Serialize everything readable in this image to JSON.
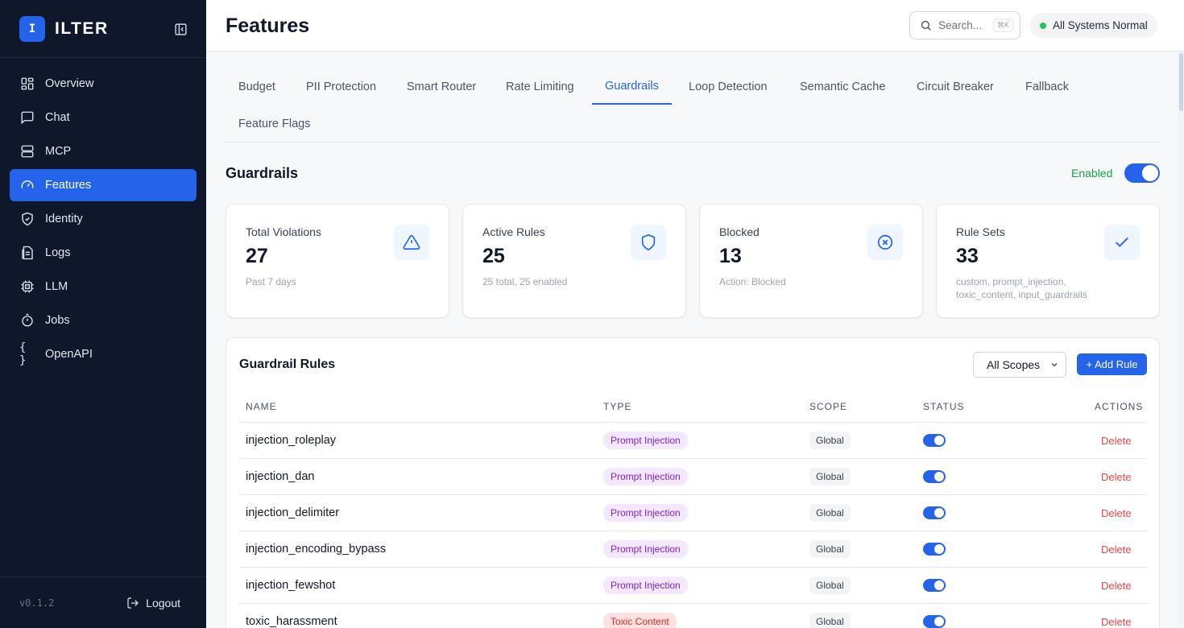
{
  "sidebar": {
    "logo_letter": "I",
    "brand": "ILTER",
    "items": [
      {
        "label": "Overview",
        "icon": "grid-icon"
      },
      {
        "label": "Chat",
        "icon": "chat-icon"
      },
      {
        "label": "MCP",
        "icon": "server-icon"
      },
      {
        "label": "Features",
        "icon": "gauge-icon",
        "active": true
      },
      {
        "label": "Identity",
        "icon": "shield-icon"
      },
      {
        "label": "Logs",
        "icon": "document-icon"
      },
      {
        "label": "LLM",
        "icon": "chip-icon"
      },
      {
        "label": "Jobs",
        "icon": "timer-icon"
      },
      {
        "label": "OpenAPI",
        "icon": "braces-icon"
      }
    ],
    "version": "v0.1.2",
    "logout": "Logout"
  },
  "header": {
    "title": "Features",
    "search_placeholder": "Search...",
    "search_shortcut": "⌘K",
    "status": "All Systems Normal"
  },
  "tabs": [
    "Budget",
    "PII Protection",
    "Smart Router",
    "Rate Limiting",
    "Guardrails",
    "Loop Detection",
    "Semantic Cache",
    "Circuit Breaker",
    "Fallback",
    "Feature Flags"
  ],
  "active_tab": "Guardrails",
  "section": {
    "title": "Guardrails",
    "enabled_label": "Enabled",
    "enabled": true
  },
  "stats": [
    {
      "label": "Total Violations",
      "value": "27",
      "sub": "Past 7 days",
      "icon": "warning-icon"
    },
    {
      "label": "Active Rules",
      "value": "25",
      "sub": "25 total, 25 enabled",
      "icon": "shield-icon"
    },
    {
      "label": "Blocked",
      "value": "13",
      "sub": "Action: Blocked",
      "icon": "x-circle-icon"
    },
    {
      "label": "Rule Sets",
      "value": "33",
      "sub": "custom, prompt_injection, toxic_content, input_guardrails",
      "icon": "check-icon"
    }
  ],
  "rules": {
    "title": "Guardrail Rules",
    "scope_filter": "All Scopes",
    "add_label": "+ Add Rule",
    "columns": [
      "NAME",
      "TYPE",
      "SCOPE",
      "STATUS",
      "ACTIONS"
    ],
    "rows": [
      {
        "name": "injection_roleplay",
        "type": "Prompt Injection",
        "scope": "Global",
        "enabled": true,
        "action": "Delete"
      },
      {
        "name": "injection_dan",
        "type": "Prompt Injection",
        "scope": "Global",
        "enabled": true,
        "action": "Delete"
      },
      {
        "name": "injection_delimiter",
        "type": "Prompt Injection",
        "scope": "Global",
        "enabled": true,
        "action": "Delete"
      },
      {
        "name": "injection_encoding_bypass",
        "type": "Prompt Injection",
        "scope": "Global",
        "enabled": true,
        "action": "Delete"
      },
      {
        "name": "injection_fewshot",
        "type": "Prompt Injection",
        "scope": "Global",
        "enabled": true,
        "action": "Delete"
      },
      {
        "name": "toxic_harassment",
        "type": "Toxic Content",
        "scope": "Global",
        "enabled": true,
        "action": "Delete"
      }
    ]
  },
  "colors": {
    "accent": "#2563eb",
    "sidebar": "#0f172a",
    "success": "#16a34a",
    "danger": "#ef4444"
  }
}
